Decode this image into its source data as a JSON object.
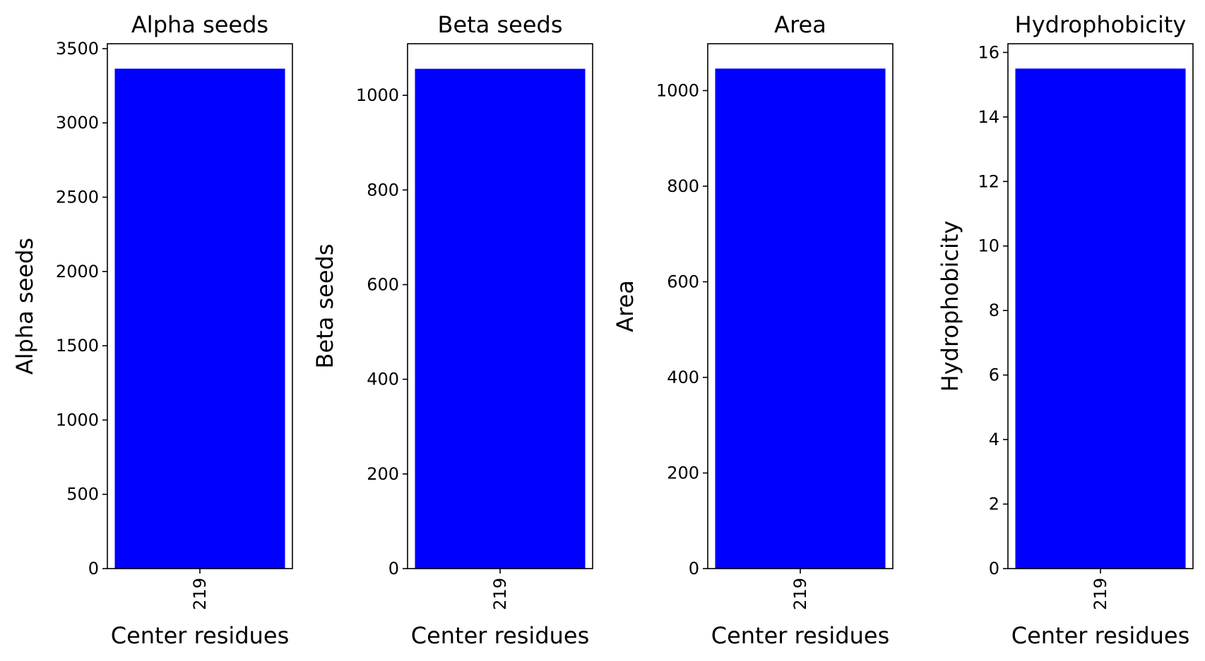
{
  "chart_data": [
    {
      "type": "bar",
      "title": "Alpha seeds",
      "xlabel": "Center residues",
      "ylabel": "Alpha seeds",
      "categories": [
        "219"
      ],
      "values": [
        3365
      ],
      "ylim": [
        0,
        3533
      ],
      "yticks": [
        0,
        500,
        1000,
        1500,
        2000,
        2500,
        3000,
        3500
      ],
      "color": "#0000ff"
    },
    {
      "type": "bar",
      "title": "Beta seeds",
      "xlabel": "Center residues",
      "ylabel": "Beta seeds",
      "categories": [
        "219"
      ],
      "values": [
        1056
      ],
      "ylim": [
        0,
        1109
      ],
      "yticks": [
        0,
        200,
        400,
        600,
        800,
        1000
      ],
      "color": "#0000ff"
    },
    {
      "type": "bar",
      "title": "Area",
      "xlabel": "Center residues",
      "ylabel": "Area",
      "categories": [
        "219"
      ],
      "values": [
        1046
      ],
      "ylim": [
        0,
        1098
      ],
      "yticks": [
        0,
        200,
        400,
        600,
        800,
        1000
      ],
      "color": "#0000ff"
    },
    {
      "type": "bar",
      "title": "Hydrophobicity",
      "xlabel": "Center residues",
      "ylabel": "Hydrophobicity",
      "categories": [
        "219"
      ],
      "values": [
        15.5
      ],
      "ylim": [
        0,
        16.27
      ],
      "yticks": [
        0,
        2,
        4,
        6,
        8,
        10,
        12,
        14,
        16
      ],
      "color": "#0000ff"
    }
  ]
}
